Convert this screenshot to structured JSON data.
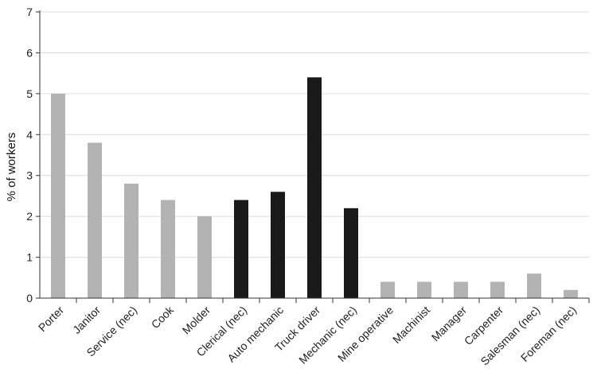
{
  "chart_data": {
    "type": "bar",
    "title": "",
    "xlabel": "",
    "ylabel": "% of workers",
    "ylim": [
      0,
      7
    ],
    "yticks": [
      0,
      1,
      2,
      3,
      4,
      5,
      6,
      7
    ],
    "grid": true,
    "legend": "none",
    "categories": [
      "Porter",
      "Janitor",
      "Service (nec)",
      "Cook",
      "Molder",
      "Clerical (nec)",
      "Auto mechanic",
      "Truck driver",
      "Mechanic (nec)",
      "Mine operative",
      "Machinist",
      "Manager",
      "Carpenter",
      "Salesman (nec)",
      "Foreman (nec)"
    ],
    "values": [
      5.0,
      3.8,
      2.8,
      2.4,
      2.0,
      2.4,
      2.6,
      5.4,
      2.2,
      0.4,
      0.4,
      0.4,
      0.4,
      0.6,
      0.2
    ],
    "bar_colors": [
      "#b3b3b3",
      "#b3b3b3",
      "#b3b3b3",
      "#b3b3b3",
      "#b3b3b3",
      "#1a1a1a",
      "#1a1a1a",
      "#1a1a1a",
      "#1a1a1a",
      "#b3b3b3",
      "#b3b3b3",
      "#b3b3b3",
      "#b3b3b3",
      "#b3b3b3",
      "#b3b3b3"
    ],
    "colors": {
      "light": "#b3b3b3",
      "dark": "#1a1a1a",
      "grid": "#dcdcdc",
      "axis": "#333333"
    }
  }
}
